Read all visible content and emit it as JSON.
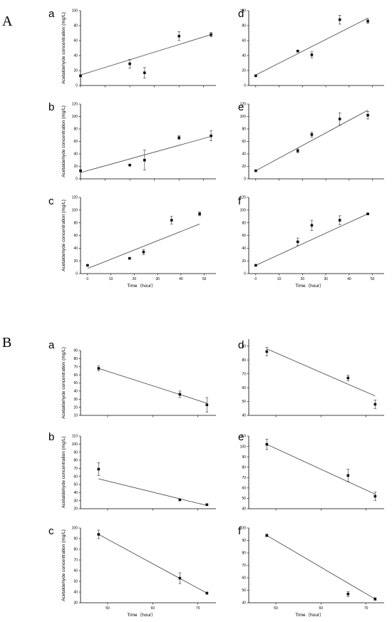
{
  "figure": {
    "groups": [
      {
        "label": "A"
      },
      {
        "label": "B"
      }
    ]
  },
  "chart_data": [
    {
      "group": "A",
      "panel": "a",
      "type": "scatter",
      "xlabel": "",
      "ylabel": "Acetaldehyde concentration (mg/L)",
      "xlim": [
        0,
        55
      ],
      "ylim": [
        0,
        100
      ],
      "xticks": [
        0,
        10,
        20,
        30,
        40,
        50
      ],
      "yticks": [
        0,
        20,
        40,
        60,
        80,
        100
      ],
      "show_xtick_labels": false,
      "points": [
        {
          "x": 0,
          "y": 13,
          "err": 1
        },
        {
          "x": 20,
          "y": 29,
          "err": 6
        },
        {
          "x": 26,
          "y": 17,
          "err": 7
        },
        {
          "x": 40,
          "y": 66,
          "err": 6
        },
        {
          "x": 53,
          "y": 68,
          "err": 3
        }
      ],
      "fit": {
        "x": [
          0,
          53
        ],
        "y": [
          14,
          68
        ]
      }
    },
    {
      "group": "A",
      "panel": "b",
      "type": "scatter",
      "xlabel": "",
      "ylabel": "Acetaldehyde concentration (mg/L)",
      "xlim": [
        0,
        55
      ],
      "ylim": [
        0,
        120
      ],
      "xticks": [
        0,
        10,
        20,
        30,
        40,
        50
      ],
      "yticks": [
        0,
        20,
        40,
        60,
        80,
        100,
        120
      ],
      "show_xtick_labels": false,
      "points": [
        {
          "x": 0,
          "y": 13,
          "err": 1
        },
        {
          "x": 20,
          "y": 22,
          "err": 1
        },
        {
          "x": 26,
          "y": 30,
          "err": 16
        },
        {
          "x": 40,
          "y": 66,
          "err": 3
        },
        {
          "x": 53,
          "y": 69,
          "err": 8
        }
      ],
      "fit": {
        "x": [
          0,
          53
        ],
        "y": [
          10,
          68
        ]
      }
    },
    {
      "group": "A",
      "panel": "c",
      "type": "scatter",
      "xlabel": "Time（hour）",
      "ylabel": "Acetaldehyde concentration (mg/L)",
      "xlim": [
        -3,
        55
      ],
      "ylim": [
        0,
        120
      ],
      "xticks": [
        0,
        10,
        20,
        30,
        40,
        50
      ],
      "yticks": [
        0,
        20,
        40,
        60,
        80,
        100,
        120
      ],
      "show_xtick_labels": true,
      "points": [
        {
          "x": 0,
          "y": 13,
          "err": 1
        },
        {
          "x": 18,
          "y": 24,
          "err": 1
        },
        {
          "x": 24,
          "y": 34,
          "err": 4
        },
        {
          "x": 36,
          "y": 84,
          "err": 6
        },
        {
          "x": 48,
          "y": 94,
          "err": 3
        }
      ],
      "fit": {
        "x": [
          0,
          48
        ],
        "y": [
          8,
          78
        ]
      }
    },
    {
      "group": "A",
      "panel": "d",
      "type": "scatter",
      "xlabel": "",
      "ylabel": "",
      "xlim": [
        -3,
        55
      ],
      "ylim": [
        0,
        100
      ],
      "xticks": [
        0,
        10,
        20,
        30,
        40,
        50
      ],
      "yticks": [
        0,
        20,
        40,
        60,
        80,
        100
      ],
      "show_xtick_labels": false,
      "points": [
        {
          "x": 0,
          "y": 13,
          "err": 1
        },
        {
          "x": 18,
          "y": 46,
          "err": 1
        },
        {
          "x": 24,
          "y": 41,
          "err": 4
        },
        {
          "x": 36,
          "y": 88,
          "err": 6
        },
        {
          "x": 48,
          "y": 86,
          "err": 3
        }
      ],
      "fit": {
        "x": [
          0,
          48
        ],
        "y": [
          14,
          90
        ]
      }
    },
    {
      "group": "A",
      "panel": "e",
      "type": "scatter",
      "xlabel": "",
      "ylabel": "",
      "xlim": [
        -3,
        55
      ],
      "ylim": [
        0,
        120
      ],
      "xticks": [
        0,
        10,
        20,
        30,
        40,
        50
      ],
      "yticks": [
        0,
        20,
        40,
        60,
        80,
        100,
        120
      ],
      "show_xtick_labels": false,
      "points": [
        {
          "x": 0,
          "y": 13,
          "err": 1
        },
        {
          "x": 18,
          "y": 45,
          "err": 3
        },
        {
          "x": 24,
          "y": 71,
          "err": 4
        },
        {
          "x": 36,
          "y": 96,
          "err": 10
        },
        {
          "x": 48,
          "y": 102,
          "err": 6
        }
      ],
      "fit": {
        "x": [
          0,
          48
        ],
        "y": [
          13,
          110
        ]
      }
    },
    {
      "group": "A",
      "panel": "f",
      "type": "scatter",
      "xlabel": "Time（hour）",
      "ylabel": "",
      "xlim": [
        -3,
        55
      ],
      "ylim": [
        0,
        120
      ],
      "xticks": [
        0,
        10,
        20,
        30,
        40,
        50
      ],
      "yticks": [
        0,
        20,
        40,
        60,
        80,
        100,
        120
      ],
      "show_xtick_labels": true,
      "points": [
        {
          "x": 0,
          "y": 13,
          "err": 1
        },
        {
          "x": 18,
          "y": 50,
          "err": 6
        },
        {
          "x": 24,
          "y": 76,
          "err": 8
        },
        {
          "x": 36,
          "y": 84,
          "err": 7
        },
        {
          "x": 48,
          "y": 94,
          "err": 1
        }
      ],
      "fit": {
        "x": [
          0,
          48
        ],
        "y": [
          13,
          94
        ]
      }
    },
    {
      "group": "B",
      "panel": "a",
      "type": "scatter",
      "xlabel": "",
      "ylabel": "Acetaldehyde concentration (mg/L)",
      "xlim": [
        44,
        74
      ],
      "ylim": [
        10,
        90
      ],
      "xticks": [
        50,
        60,
        70
      ],
      "yticks": [
        10,
        20,
        30,
        40,
        50,
        60,
        70,
        80,
        90
      ],
      "show_xtick_labels": false,
      "points": [
        {
          "x": 48,
          "y": 68,
          "err": 3
        },
        {
          "x": 66,
          "y": 36,
          "err": 4
        },
        {
          "x": 72,
          "y": 23,
          "err": 9
        }
      ],
      "fit": {
        "x": [
          48,
          72
        ],
        "y": [
          68,
          25
        ]
      }
    },
    {
      "group": "B",
      "panel": "b",
      "type": "scatter",
      "xlabel": "",
      "ylabel": "Acetaldehyde concentration (mg/L)",
      "xlim": [
        44,
        74
      ],
      "ylim": [
        20,
        110
      ],
      "xticks": [
        50,
        60,
        70
      ],
      "yticks": [
        20,
        30,
        40,
        50,
        60,
        70,
        80,
        90,
        100,
        110
      ],
      "show_xtick_labels": false,
      "points": [
        {
          "x": 48,
          "y": 69,
          "err": 8
        },
        {
          "x": 66,
          "y": 31,
          "err": 1
        },
        {
          "x": 72,
          "y": 25,
          "err": 1
        }
      ],
      "fit": {
        "x": [
          48,
          72
        ],
        "y": [
          57,
          24
        ]
      }
    },
    {
      "group": "B",
      "panel": "c",
      "type": "scatter",
      "xlabel": "Time（hour）",
      "ylabel": "Acetaldehyde concentration (mg/L)",
      "xlim": [
        44,
        74
      ],
      "ylim": [
        30,
        100
      ],
      "xticks": [
        50,
        60,
        70
      ],
      "yticks": [
        30,
        40,
        50,
        60,
        70,
        80,
        90,
        100
      ],
      "show_xtick_labels": true,
      "points": [
        {
          "x": 48,
          "y": 94,
          "err": 4
        },
        {
          "x": 66,
          "y": 53,
          "err": 5
        },
        {
          "x": 72,
          "y": 39,
          "err": 1
        }
      ],
      "fit": {
        "x": [
          48,
          72
        ],
        "y": [
          94,
          39
        ]
      }
    },
    {
      "group": "B",
      "panel": "d",
      "type": "scatter",
      "xlabel": "",
      "ylabel": "",
      "xlim": [
        44,
        74
      ],
      "ylim": [
        40,
        95
      ],
      "xticks": [
        50,
        60,
        70
      ],
      "yticks": [
        40,
        50,
        60,
        70,
        80,
        90
      ],
      "show_xtick_labels": false,
      "points": [
        {
          "x": 48,
          "y": 86,
          "err": 3
        },
        {
          "x": 66,
          "y": 67,
          "err": 2
        },
        {
          "x": 72,
          "y": 48,
          "err": 3
        }
      ],
      "fit": {
        "x": [
          48,
          72
        ],
        "y": [
          88,
          54
        ]
      }
    },
    {
      "group": "B",
      "panel": "e",
      "type": "scatter",
      "xlabel": "",
      "ylabel": "",
      "xlim": [
        44,
        74
      ],
      "ylim": [
        40,
        110
      ],
      "xticks": [
        50,
        60,
        70
      ],
      "yticks": [
        40,
        50,
        60,
        70,
        80,
        90,
        100,
        110
      ],
      "show_xtick_labels": false,
      "points": [
        {
          "x": 48,
          "y": 102,
          "err": 5
        },
        {
          "x": 66,
          "y": 72,
          "err": 6
        },
        {
          "x": 72,
          "y": 52,
          "err": 4
        }
      ],
      "fit": {
        "x": [
          48,
          72
        ],
        "y": [
          102,
          54
        ]
      }
    },
    {
      "group": "B",
      "panel": "f",
      "type": "scatter",
      "xlabel": "Time（hour）",
      "ylabel": "",
      "xlim": [
        44,
        74
      ],
      "ylim": [
        40,
        100
      ],
      "xticks": [
        50,
        60,
        70
      ],
      "yticks": [
        40,
        50,
        60,
        70,
        80,
        90,
        100
      ],
      "show_xtick_labels": true,
      "points": [
        {
          "x": 48,
          "y": 94,
          "err": 1
        },
        {
          "x": 66,
          "y": 47,
          "err": 2
        },
        {
          "x": 72,
          "y": 43,
          "err": 1
        }
      ],
      "fit": {
        "x": [
          48,
          72
        ],
        "y": [
          94,
          43
        ]
      }
    }
  ]
}
